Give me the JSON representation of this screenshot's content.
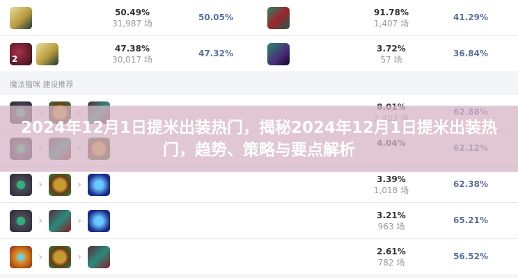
{
  "top_left": [
    {
      "icons": [
        "scroll"
      ],
      "pick_rate": "50.49%",
      "games": "31,987 场",
      "win_rate": "50.05%"
    },
    {
      "icons": [
        "red-potion",
        "scroll"
      ],
      "badge": "2",
      "pick_rate": "47.38%",
      "games": "30,017 场",
      "win_rate": "47.32%"
    }
  ],
  "top_right": [
    {
      "icons": [
        "red-boots"
      ],
      "pick_rate": "91.78%",
      "games": "1,407 场",
      "win_rate": "41.29%"
    },
    {
      "icons": [
        "green-boots"
      ],
      "pick_rate": "3.72%",
      "games": "57 场",
      "win_rate": "36.84%"
    }
  ],
  "section_title": "魔法猫咪 建设推荐",
  "builds": [
    {
      "icons": [
        "amulet",
        "bell",
        "cloak"
      ],
      "pick_rate": "8.01%",
      "games": "2,403 场",
      "win_rate": "62.88%"
    },
    {
      "icons": [
        "amulet",
        "cloak",
        "bell"
      ],
      "pick_rate": "4.04%",
      "games": "",
      "win_rate": "62.12%"
    },
    {
      "icons": [
        "amulet",
        "bell",
        "blue-wisp"
      ],
      "pick_rate": "3.39%",
      "games": "1,018 场",
      "win_rate": "62.38%"
    },
    {
      "icons": [
        "amulet",
        "cloak",
        "blue-wisp"
      ],
      "pick_rate": "3.21%",
      "games": "963 场",
      "win_rate": "65.21%"
    },
    {
      "icons": [
        "fire-amulet",
        "bell",
        "cloak"
      ],
      "pick_rate": "2.61%",
      "games": "782 场",
      "win_rate": "56.52%"
    }
  ],
  "banner_title": "2024年12月1日提米出装热门，揭秘2024年12月1日提米出装热门，趋势、策略与要点解析"
}
